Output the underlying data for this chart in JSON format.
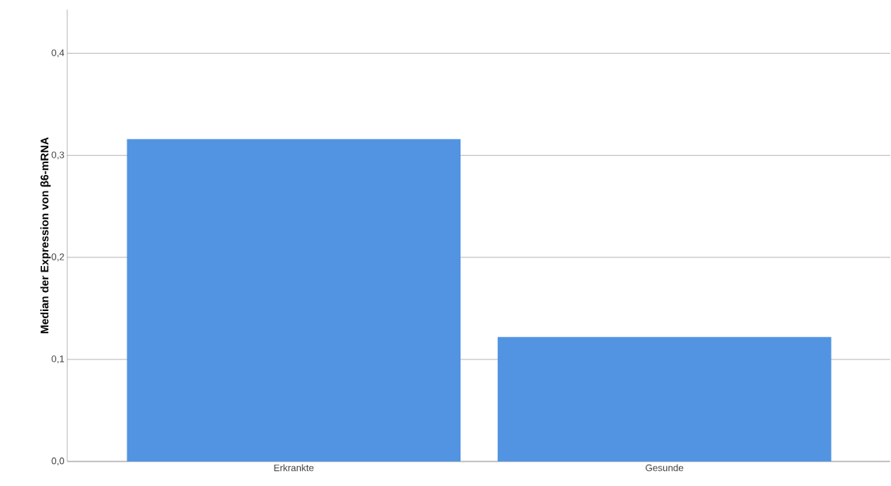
{
  "chart_data": {
    "type": "bar",
    "ylabel": "Median der Expression von β6-mRNA",
    "categories": [
      "Erkrankte",
      "Gesunde"
    ],
    "values": [
      0.316,
      0.122
    ],
    "color": "#5294e2",
    "ylim": [
      0,
      0.443
    ],
    "yticks": [
      {
        "value": 0,
        "label": "0,0"
      },
      {
        "value": 0.1,
        "label": "0,1"
      },
      {
        "value": 0.2,
        "label": "0,2"
      },
      {
        "value": 0.3,
        "label": "0,3"
      },
      {
        "value": 0.4,
        "label": "0,4"
      }
    ],
    "grid": "y"
  }
}
